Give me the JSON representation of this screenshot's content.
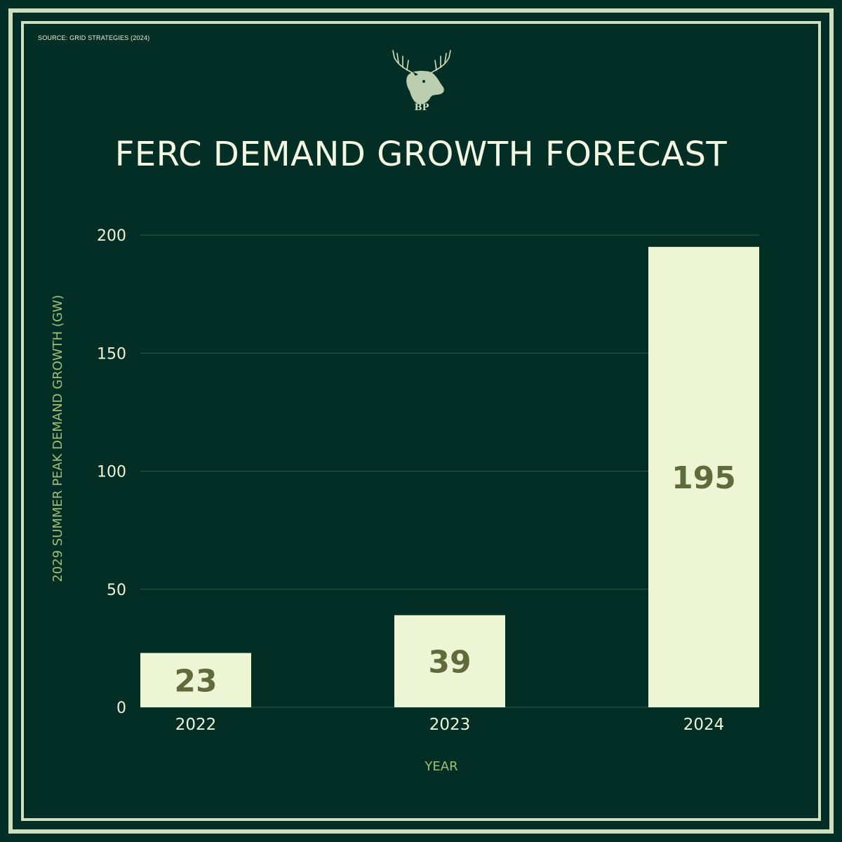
{
  "source": "SOURCE: GRID STRATEGIES (2024)",
  "logo": {
    "icon": "moose-head-icon",
    "text": "BP"
  },
  "colors": {
    "background": "#032e25",
    "frame": "#cfe0c0",
    "bar": "#eef5d4",
    "bar_label": "#5f6b3a",
    "text": "#eef4d8",
    "axis_title": "#9fbf78"
  },
  "chart_data": {
    "type": "bar",
    "title": "FERC DEMAND GROWTH FORECAST",
    "categories": [
      "2022",
      "2023",
      "2024"
    ],
    "values": [
      23,
      39,
      195
    ],
    "data_labels": [
      "23",
      "39",
      "195"
    ],
    "xlabel": "YEAR",
    "ylabel": "2029 SUMMER PEAK DEMAND GROWTH (GW)",
    "ylim": [
      0,
      200
    ],
    "yticks": [
      0,
      50,
      100,
      150,
      200
    ],
    "grid": true,
    "legend": "none"
  }
}
